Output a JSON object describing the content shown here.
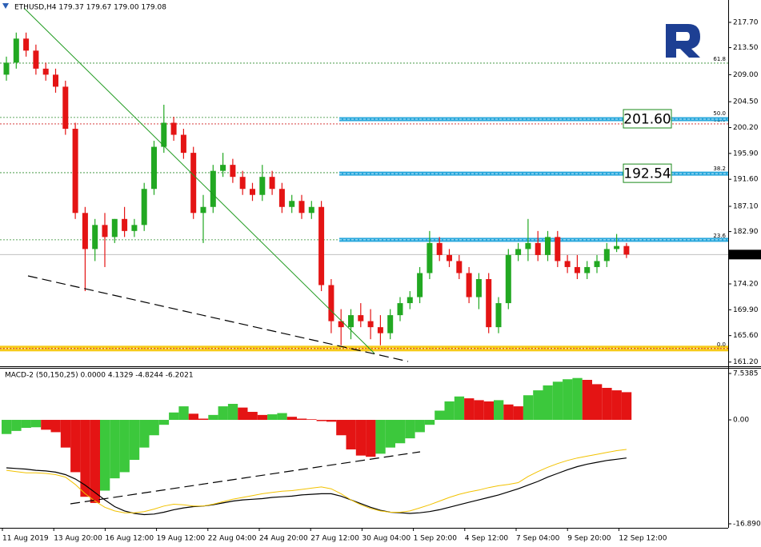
{
  "chart_data": {
    "type": "candlestick",
    "header": "ETHUSD,H4  179.37 179.67 179.00 179.08",
    "open": [
      209,
      211,
      215,
      213,
      210,
      209,
      207,
      200,
      186,
      180,
      184,
      182,
      185,
      183,
      184,
      190,
      197,
      201,
      199,
      196,
      186,
      187,
      193,
      194,
      192,
      190,
      189,
      192,
      190,
      187,
      188,
      186,
      187,
      174,
      168,
      167,
      169,
      168,
      167,
      166,
      169,
      171,
      172,
      176,
      181,
      179,
      178,
      176,
      172,
      175,
      167,
      171,
      179,
      180,
      181,
      179,
      182,
      178,
      177,
      176,
      177,
      178,
      180,
      180.5
    ],
    "high": [
      212,
      216,
      216,
      214,
      211,
      210,
      208,
      201,
      187,
      185,
      186,
      185,
      187,
      185,
      191,
      198,
      204,
      202,
      200,
      197,
      189,
      194,
      196,
      195,
      193,
      191,
      194,
      193,
      191,
      189,
      189,
      188,
      188,
      175,
      170,
      170,
      171,
      170,
      169,
      170,
      172,
      173,
      177,
      183,
      182,
      180,
      179,
      177,
      176,
      176,
      172,
      180,
      181,
      185,
      183,
      183,
      183,
      179,
      179,
      178,
      179,
      181,
      182.5,
      181
    ],
    "low": [
      208,
      210,
      212,
      209,
      208,
      206,
      199,
      185,
      173,
      178,
      177,
      181,
      182,
      182,
      183,
      189,
      196,
      198,
      195,
      185,
      181,
      186,
      192,
      191,
      189,
      188,
      188,
      189,
      186,
      186,
      185,
      185,
      173,
      166,
      164,
      165,
      167,
      165,
      164,
      165,
      168,
      170,
      171,
      175,
      178,
      177,
      175,
      171,
      170,
      166,
      166,
      170,
      178,
      178,
      178,
      178,
      177,
      176,
      175,
      175,
      176,
      177,
      179.5,
      178.5
    ],
    "close": [
      211,
      215,
      213,
      210,
      209,
      207,
      200,
      186,
      180,
      184,
      182,
      185,
      183,
      184,
      190,
      197,
      201,
      199,
      196,
      186,
      187,
      193,
      194,
      192,
      190,
      189,
      192,
      190,
      187,
      188,
      186,
      187,
      174,
      168,
      167,
      169,
      168,
      167,
      166,
      169,
      171,
      172,
      176,
      181,
      179,
      178,
      176,
      172,
      175,
      167,
      171,
      179,
      180,
      181,
      179,
      182,
      178,
      177,
      176,
      177,
      178,
      180,
      180.5,
      179.08
    ],
    "up_color": "#22a822",
    "down_color": "#e41414",
    "ylim": [
      160.5,
      221.42
    ],
    "yticks": [
      {
        "value": 217.7,
        "label": "217.70"
      },
      {
        "value": 213.5,
        "label": "213.50"
      },
      {
        "value": 209,
        "label": "209.00"
      },
      {
        "value": 204.5,
        "label": "204.50"
      },
      {
        "value": 200.2,
        "label": "200.20"
      },
      {
        "value": 195.9,
        "label": "195.90"
      },
      {
        "value": 191.6,
        "label": "191.60"
      },
      {
        "value": 187.1,
        "label": "187.10"
      },
      {
        "value": 182.9,
        "label": "182.90"
      },
      {
        "value": 174.2,
        "label": "174.20"
      },
      {
        "value": 169.9,
        "label": "169.90"
      },
      {
        "value": 165.6,
        "label": "165.60"
      },
      {
        "value": 161.2,
        "label": "161.20"
      }
    ],
    "current_price": 179.08,
    "levels": [
      {
        "price": 210.92,
        "label": "61.8",
        "color": "#2e8b2e"
      },
      {
        "price": 201.88,
        "label": "50.0",
        "color": "#2e8b2e"
      },
      {
        "price": 200.81,
        "label": "61.8",
        "color": "#d02020"
      },
      {
        "price": 192.7,
        "label": "38.2",
        "color": "#2e8b2e"
      },
      {
        "price": 181.53,
        "label": "23.6",
        "color": "#2e8b2e"
      },
      {
        "price": 163.45,
        "label": "0.0",
        "color": "#d02020"
      }
    ],
    "bands": [
      {
        "price": 201.6,
        "label": "201.60",
        "color": "#2aa8dc"
      },
      {
        "price": 192.54,
        "label": "192.54",
        "color": "#2aa8dc"
      },
      {
        "price": 181.53,
        "color": "#2aa8dc"
      }
    ],
    "support_zone": {
      "price": 163.45,
      "color": "#f5c400"
    },
    "date_labels": [
      "11 Aug 2019",
      "13 Aug 20:00",
      "16 Aug 12:00",
      "19 Aug 12:00",
      "22 Aug 04:00",
      "24 Aug 20:00",
      "27 Aug 12:00",
      "30 Aug 04:00",
      "1 Sep 20:00",
      "4 Sep 12:00",
      "7 Sep 04:00",
      "9 Sep 20:00",
      "12 Sep 12:00"
    ],
    "macd": {
      "type": "macd",
      "header": "MACD-2 (50,150,25) 0.0000 4.1329 -4.8244 -6.2021",
      "histogram": [
        -2.3,
        -1.8,
        -1.3,
        -1.2,
        -1.6,
        -2,
        -4.5,
        -8.5,
        -12.5,
        -13.5,
        -11.5,
        -9.5,
        -8.5,
        -6.5,
        -4.5,
        -2.5,
        -0.8,
        1.2,
        2.2,
        1,
        0.2,
        0.8,
        2.2,
        2.6,
        2,
        1.3,
        0.8,
        0.9,
        1.1,
        0.5,
        0.2,
        0.1,
        -0.2,
        -0.3,
        -2.5,
        -4.8,
        -5.8,
        -6,
        -5.5,
        -4.5,
        -3.8,
        -3,
        -2,
        -0.8,
        1.5,
        3,
        3.8,
        3.5,
        3.2,
        3,
        3.2,
        2.5,
        2.2,
        4,
        4.8,
        5.6,
        6.2,
        6.6,
        6.8,
        6.5,
        5.8,
        5.2,
        4.8,
        4.5
      ],
      "main": [
        -7.8,
        -7.9,
        -8,
        -8.2,
        -8.3,
        -8.5,
        -8.9,
        -9.6,
        -10.6,
        -11.8,
        -13,
        -14.1,
        -14.8,
        -15.2,
        -15.4,
        -15.3,
        -15,
        -14.6,
        -14.3,
        -14.1,
        -14,
        -13.8,
        -13.5,
        -13.2,
        -13,
        -12.9,
        -12.8,
        -12.6,
        -12.5,
        -12.4,
        -12.2,
        -12.1,
        -12,
        -12,
        -12.4,
        -13,
        -13.6,
        -14.2,
        -14.7,
        -15,
        -15.1,
        -15.2,
        -15.1,
        -14.9,
        -14.6,
        -14.2,
        -13.8,
        -13.4,
        -13,
        -12.6,
        -12.2,
        -11.7,
        -11.2,
        -10.6,
        -10,
        -9.3,
        -8.7,
        -8.1,
        -7.6,
        -7.2,
        -6.9,
        -6.6,
        -6.4,
        -6.2
      ],
      "signal": [
        -8.2,
        -8.4,
        -8.6,
        -8.6,
        -8.7,
        -8.9,
        -9.3,
        -10.5,
        -12,
        -13.2,
        -14.2,
        -14.8,
        -15.1,
        -15.1,
        -14.9,
        -14.5,
        -14,
        -13.7,
        -13.8,
        -14,
        -14,
        -13.7,
        -13.3,
        -12.9,
        -12.6,
        -12.3,
        -12,
        -11.8,
        -11.6,
        -11.5,
        -11.3,
        -11.1,
        -10.9,
        -11.2,
        -12,
        -13,
        -13.8,
        -14.4,
        -14.8,
        -15,
        -15,
        -14.8,
        -14.3,
        -13.8,
        -13.2,
        -12.6,
        -12.1,
        -11.7,
        -11.4,
        -11,
        -10.7,
        -10.5,
        -10.2,
        -9.2,
        -8.4,
        -7.7,
        -7.1,
        -6.6,
        -6.2,
        -5.9,
        -5.6,
        -5.3,
        -5,
        -4.8
      ],
      "up_color": "#3cc83c",
      "down_color": "#e41414",
      "main_color": "#000000",
      "signal_color": "#f2c200",
      "ylim": [
        -17.54,
        8.45
      ],
      "yticks": [
        7.5385,
        {
          "value": 0,
          "label": "0.00"
        },
        -16.8901
      ]
    }
  }
}
